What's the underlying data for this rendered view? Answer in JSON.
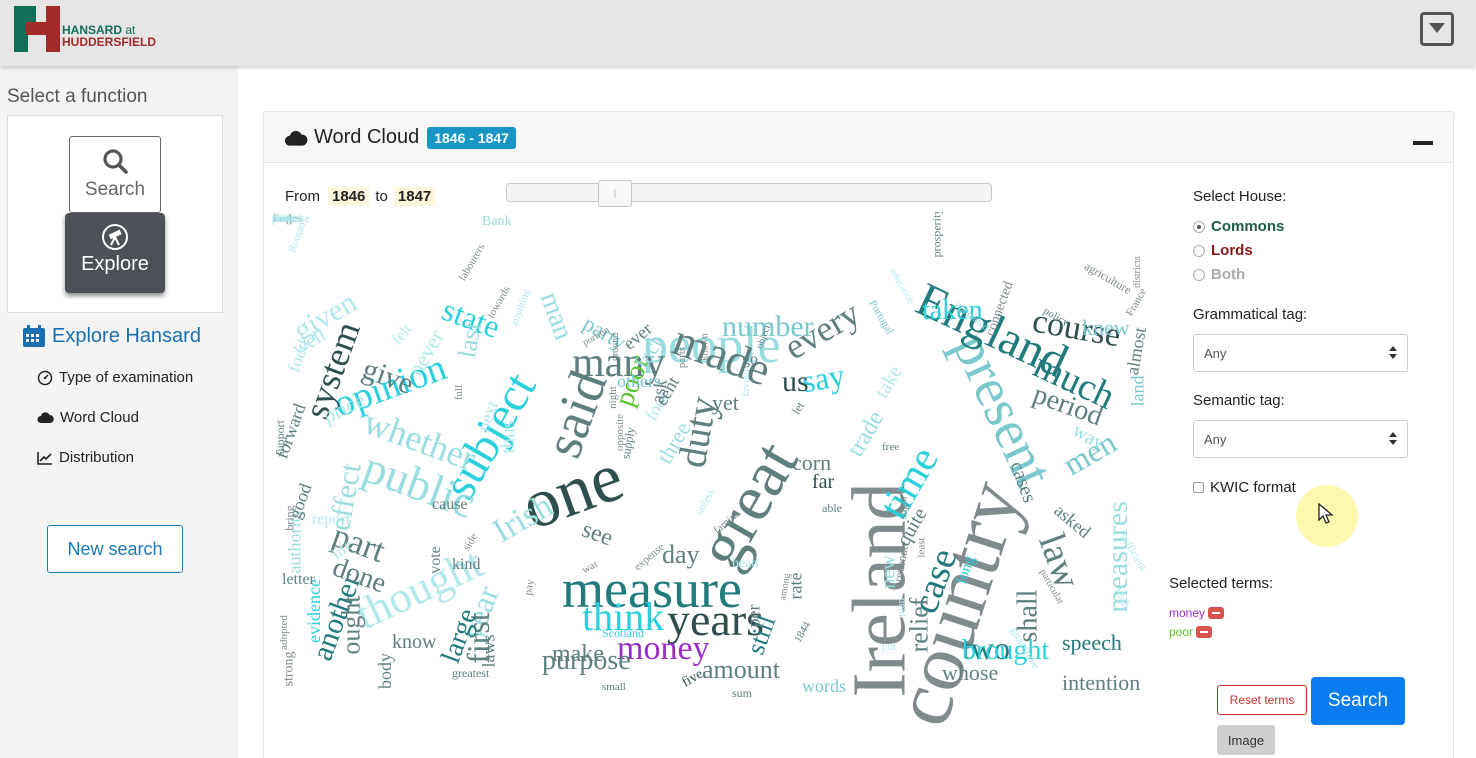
{
  "header": {
    "logo_line1": "HANSARD",
    "logo_at": "at",
    "logo_line2": "HUDDERSFIELD",
    "menu_icon": "chevron-down-box-icon"
  },
  "sidebar": {
    "heading": "Select a function",
    "functions": [
      {
        "label": "Search",
        "icon": "magnifier-icon",
        "active": false
      },
      {
        "label": "Explore",
        "icon": "telescope-icon",
        "active": true
      }
    ],
    "section_title": "Explore Hansard",
    "section_icon": "calendar-icon",
    "items": [
      {
        "label": "Type of examination",
        "icon": "gauge-icon"
      },
      {
        "label": "Word Cloud",
        "icon": "cloud-icon"
      },
      {
        "label": "Distribution",
        "icon": "line-chart-icon"
      }
    ],
    "new_search_label": "New search"
  },
  "card": {
    "title": "Word Cloud",
    "title_icon": "cloud-icon",
    "badge": "1846 - 1847",
    "range": {
      "from_label": "From",
      "from": "1846",
      "to_label": "to",
      "to": "1847"
    },
    "slider_position": 0.2
  },
  "controls": {
    "house_label": "Select House:",
    "houses": [
      {
        "label": "Commons",
        "selected": true,
        "color": "#1e5a46"
      },
      {
        "label": "Lords",
        "selected": false,
        "color": "#8b1a1a"
      },
      {
        "label": "Both",
        "selected": false,
        "color": "#aaaaaa"
      }
    ],
    "gram_label": "Grammatical tag:",
    "gram_value": "Any",
    "sem_label": "Semantic tag:",
    "sem_value": "Any",
    "kwic_label": "KWIC format",
    "selected_label": "Selected terms:",
    "terms": [
      {
        "label": "money",
        "color": "#9b2fc4"
      },
      {
        "label": "poor",
        "color": "#58c52a"
      }
    ],
    "reset_label": "Reset terms",
    "search_label": "Search",
    "image_label": "Image"
  },
  "colors": {
    "accent": "#1796c6",
    "primary_button": "#0a7cf0",
    "danger": "#d9534f"
  },
  "cloud_words": [
    {
      "t": "country",
      "c": "#808b8d"
    },
    {
      "t": "Ireland",
      "c": "#808b8d"
    },
    {
      "t": "one",
      "c": "#2f4f4f"
    },
    {
      "t": "great",
      "c": "#5f7f7f"
    },
    {
      "t": "measure",
      "c": "#217a7c"
    },
    {
      "t": "present",
      "c": "#79c8cc"
    },
    {
      "t": "people",
      "c": "#9adde0"
    },
    {
      "t": "England",
      "c": "#217a7c"
    },
    {
      "t": "said",
      "c": "#5f7f7f"
    },
    {
      "t": "subject",
      "c": "#2bd0dd"
    },
    {
      "t": "years",
      "c": "#2f4f4f"
    },
    {
      "t": "thought",
      "c": "#b0e8ec"
    },
    {
      "t": "public",
      "c": "#9adde0"
    },
    {
      "t": "made",
      "c": "#5f7f7f"
    },
    {
      "t": "many",
      "c": "#5f7f7f"
    },
    {
      "t": "time",
      "c": "#2bd0dd"
    },
    {
      "t": "duty",
      "c": "#5f7f7f"
    },
    {
      "t": "think",
      "c": "#2bd0dd"
    },
    {
      "t": "opinion",
      "c": "#2bd0dd"
    },
    {
      "t": "whether",
      "c": "#9adde0"
    },
    {
      "t": "law",
      "c": "#5f7f7f"
    },
    {
      "t": "much",
      "c": "#217a7c"
    },
    {
      "t": "course",
      "c": "#2f4f4f"
    },
    {
      "t": "case",
      "c": "#217a7c"
    },
    {
      "t": "every",
      "c": "#5f7f7f"
    },
    {
      "t": "two",
      "c": "#217a7c"
    },
    {
      "t": "system",
      "c": "#2f4f4f"
    },
    {
      "t": "state",
      "c": "#2bd0dd"
    },
    {
      "t": "part",
      "c": "#5f7f7f"
    },
    {
      "t": "year",
      "c": "#9adde0"
    },
    {
      "t": "Irish",
      "c": "#9adde0"
    },
    {
      "t": "first",
      "c": "#5f7f7f"
    },
    {
      "t": "money",
      "c": "#9b2fc4"
    },
    {
      "t": "men",
      "c": "#79c8cc"
    },
    {
      "t": "measures",
      "c": "#9adde0"
    },
    {
      "t": "poor",
      "c": "#58c52a"
    },
    {
      "t": "give",
      "c": "#5f7f7f"
    },
    {
      "t": "man",
      "c": "#9adde0"
    },
    {
      "t": "last",
      "c": "#9adde0"
    },
    {
      "t": "period",
      "c": "#5f7f7f"
    },
    {
      "t": "number",
      "c": "#79c8cc"
    },
    {
      "t": "taken",
      "c": "#2bd0dd"
    },
    {
      "t": "given",
      "c": "#b0e8ec"
    },
    {
      "t": "brought",
      "c": "#2bd0dd"
    },
    {
      "t": "effect",
      "c": "#9adde0"
    },
    {
      "t": "another",
      "c": "#217a7c"
    },
    {
      "t": "done",
      "c": "#5f7f7f"
    },
    {
      "t": "purpose",
      "c": "#5f7f7f"
    },
    {
      "t": "amount",
      "c": "#5f7f7f"
    },
    {
      "t": "shall",
      "c": "#5f7f7f"
    },
    {
      "t": "say",
      "c": "#2bd0dd"
    },
    {
      "t": "us",
      "c": "#2f4f4f"
    },
    {
      "t": "trade",
      "c": "#9adde0"
    },
    {
      "t": "still",
      "c": "#217a7c"
    },
    {
      "t": "relief",
      "c": "#5f7f7f"
    },
    {
      "t": "large",
      "c": "#217a7c"
    },
    {
      "t": "ought",
      "c": "#5f7f7f"
    },
    {
      "t": "day",
      "c": "#5f7f7f"
    },
    {
      "t": "make",
      "c": "#5f7f7f"
    },
    {
      "t": "see",
      "c": "#5f7f7f"
    },
    {
      "t": "speech",
      "c": "#217a7c"
    },
    {
      "t": "intention",
      "c": "#5f7f7f"
    },
    {
      "t": "whose",
      "c": "#5f7f7f"
    },
    {
      "t": "knew",
      "c": "#79c8cc"
    },
    {
      "t": "take",
      "c": "#b0e8ec"
    },
    {
      "t": "fact",
      "c": "#9adde0"
    },
    {
      "t": "never",
      "c": "#b0e8ec"
    },
    {
      "t": "well",
      "c": "#b0e8ec"
    },
    {
      "t": "price",
      "c": "#b0e8ec"
    },
    {
      "t": "three",
      "c": "#9adde0"
    },
    {
      "t": "party",
      "c": "#79c8cc"
    },
    {
      "t": "yet",
      "c": "#5f7f7f"
    },
    {
      "t": "corn",
      "c": "#5f7f7f"
    },
    {
      "t": "far",
      "c": "#2f4f4f"
    },
    {
      "t": "new",
      "c": "#9adde0"
    },
    {
      "t": "quite",
      "c": "#5f7f7f"
    },
    {
      "t": "cases",
      "c": "#5f7f7f"
    },
    {
      "t": "way",
      "c": "#9adde0"
    },
    {
      "t": "land",
      "c": "#79c8cc"
    },
    {
      "t": "almost",
      "c": "#5f7f7f"
    },
    {
      "t": "asked",
      "c": "#5f7f7f"
    },
    {
      "t": "words",
      "c": "#79c8cc"
    },
    {
      "t": "laws",
      "c": "#5f7f7f"
    },
    {
      "t": "know",
      "c": "#5f7f7f"
    },
    {
      "t": "rate",
      "c": "#5f7f7f"
    },
    {
      "t": "per",
      "c": "#5f7f7f"
    },
    {
      "t": "long",
      "c": "#2bd0dd"
    },
    {
      "t": "evidence",
      "c": "#2bd0dd"
    },
    {
      "t": "authority",
      "c": "#9adde0"
    },
    {
      "t": "good",
      "c": "#5f7f7f"
    },
    {
      "t": "forward",
      "c": "#5f7f7f"
    },
    {
      "t": "food",
      "c": "#b0e8ec"
    },
    {
      "t": "letter",
      "c": "#5f7f7f"
    },
    {
      "t": "report",
      "c": "#b0e8ec"
    },
    {
      "t": "life",
      "c": "#b0e8ec"
    },
    {
      "t": "body",
      "c": "#5f7f7f"
    },
    {
      "t": "kind",
      "c": "#5f7f7f"
    },
    {
      "t": "vote",
      "c": "#5f7f7f"
    },
    {
      "t": "cause",
      "c": "#5f7f7f"
    },
    {
      "t": "next",
      "c": "#b0e8ec"
    },
    {
      "t": "felt",
      "c": "#b0e8ec"
    },
    {
      "t": "thus",
      "c": "#b0e8ec"
    },
    {
      "t": "others",
      "c": "#79c8cc"
    },
    {
      "t": "four",
      "c": "#b0e8ec"
    },
    {
      "t": "cent",
      "c": "#5f7f7f"
    },
    {
      "t": "ask",
      "c": "#5f7f7f"
    },
    {
      "t": "ever",
      "c": "#5f7f7f"
    },
    {
      "t": "go",
      "c": "#5f7f7f"
    },
    {
      "t": "head",
      "c": "#b0e8ec"
    },
    {
      "t": "able",
      "c": "#5f7f7f"
    },
    {
      "t": "greatest",
      "c": "#5f7f7f"
    },
    {
      "t": "five",
      "c": "#2f4f4f"
    },
    {
      "t": "small",
      "c": "#5f7f7f"
    },
    {
      "t": "sum",
      "c": "#5f7f7f"
    },
    {
      "t": "Scotland",
      "c": "#2bd0dd"
    },
    {
      "t": "Bank",
      "c": "#9adde0"
    },
    {
      "t": "agriculture",
      "c": "#808b8d"
    },
    {
      "t": "policy",
      "c": "#5f7f7f"
    },
    {
      "t": "appointed",
      "c": "#9adde0"
    },
    {
      "t": "Portugal",
      "c": "#79c8cc"
    },
    {
      "t": "education",
      "c": "#b0e8ec"
    },
    {
      "t": "prosperity",
      "c": "#5f7f7f"
    },
    {
      "t": "connected",
      "c": "#808b8d"
    },
    {
      "t": "France",
      "c": "#808b8d"
    },
    {
      "t": "districts",
      "c": "#808b8d"
    },
    {
      "t": "sufficient",
      "c": "#b0e8ec"
    },
    {
      "t": "high",
      "c": "#b0e8ec"
    },
    {
      "t": "particular",
      "c": "#808b8d"
    },
    {
      "t": "guarantee",
      "c": "#b0e8ec"
    },
    {
      "t": "strong",
      "c": "#808b8d"
    },
    {
      "t": "adopted",
      "c": "#808b8d"
    },
    {
      "t": "support",
      "c": "#5f7f7f"
    },
    {
      "t": "bring",
      "c": "#808b8d"
    },
    {
      "t": "Roman",
      "c": "#b0e8ec"
    },
    {
      "t": "labourers",
      "c": "#808b8d"
    },
    {
      "t": "towards",
      "c": "#808b8d"
    },
    {
      "t": "anything",
      "c": "#b0e8ec"
    },
    {
      "t": "portion",
      "c": "#808b8d"
    },
    {
      "t": "ground",
      "c": "#5f7f7f"
    },
    {
      "t": "supply",
      "c": "#5f7f7f"
    },
    {
      "t": "favour",
      "c": "#b0e8ec"
    },
    {
      "t": "object",
      "c": "#5f7f7f"
    },
    {
      "t": "let",
      "c": "#5f7f7f"
    },
    {
      "t": "free",
      "c": "#5f7f7f"
    },
    {
      "t": "revenue",
      "c": "#808b8d"
    },
    {
      "t": "sugar",
      "c": "#5f7f7f"
    },
    {
      "t": "least",
      "c": "#808b8d"
    },
    {
      "t": "plan",
      "c": "#b0e8ec"
    },
    {
      "t": "put",
      "c": "#b0e8ec"
    },
    {
      "t": "1844",
      "c": "#5f7f7f"
    },
    {
      "t": "among",
      "c": "#808b8d"
    },
    {
      "t": "famine",
      "c": "#808b8d"
    },
    {
      "t": "unless",
      "c": "#b0e8ec"
    },
    {
      "t": "expense",
      "c": "#808b8d"
    },
    {
      "t": "war",
      "c": "#808b8d"
    },
    {
      "t": "pay",
      "c": "#808b8d"
    },
    {
      "t": "side",
      "c": "#808b8d"
    },
    {
      "t": "full",
      "c": "#808b8d"
    },
    {
      "t": "night",
      "c": "#808b8d"
    },
    {
      "t": "parts",
      "c": "#808b8d"
    },
    {
      "t": "known",
      "c": "#808b8d"
    },
    {
      "t": "opposite",
      "c": "#808b8d"
    },
    {
      "t": "wages",
      "c": "#808b8d"
    },
    {
      "t": "find",
      "c": "#808b8d"
    },
    {
      "t": "ten",
      "c": "#b0e8ec"
    },
    {
      "t": "1842",
      "c": "#b0e8ec"
    },
    {
      "t": "sure",
      "c": "#b0e8ec"
    },
    {
      "t": "united",
      "c": "#b0e8ec"
    },
    {
      "t": "propose",
      "c": "#b0e8ec"
    }
  ]
}
